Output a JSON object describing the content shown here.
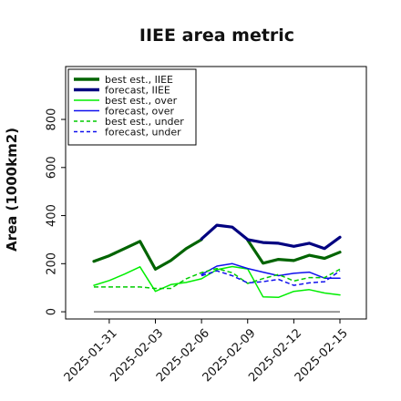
{
  "chart_data": {
    "type": "line",
    "title": "IIEE area metric",
    "xlabel": "",
    "ylabel": "Area (1000km2)",
    "ylim": [
      -30,
      1020
    ],
    "yticks": [
      0,
      200,
      400,
      600,
      800
    ],
    "xticks": [
      "2025-01-31",
      "2025-02-03",
      "2025-02-06",
      "2025-02-09",
      "2025-02-12",
      "2025-02-15"
    ],
    "highlighted_xtick": "2025-02-06",
    "highlight_color": "#228b22",
    "legend_position": "upper left",
    "x": [
      "2025-01-30",
      "2025-01-31",
      "2025-02-01",
      "2025-02-02",
      "2025-02-03",
      "2025-02-04",
      "2025-02-05",
      "2025-02-06",
      "2025-02-07",
      "2025-02-08",
      "2025-02-09",
      "2025-02-10",
      "2025-02-11",
      "2025-02-12",
      "2025-02-13",
      "2025-02-14",
      "2025-02-15"
    ],
    "zero_line": {
      "value": 0,
      "color": "#777777"
    },
    "series": [
      {
        "name": "best est., IIEE",
        "color": "#006400",
        "style": "solid",
        "width": 3.2,
        "values": [
          210,
          233,
          263,
          293,
          177,
          213,
          263,
          300,
          null,
          null,
          298,
          202,
          218,
          213,
          235,
          222,
          248
        ]
      },
      {
        "name": "forecast, IIEE",
        "color": "#000080",
        "style": "solid",
        "width": 3.2,
        "values": [
          null,
          null,
          null,
          null,
          null,
          null,
          null,
          303,
          360,
          352,
          300,
          288,
          285,
          272,
          285,
          263,
          310
        ]
      },
      {
        "name": "best est., over",
        "color": "#00ee00",
        "style": "solid",
        "width": 1.5,
        "values": [
          110,
          130,
          157,
          187,
          85,
          113,
          122,
          137,
          175,
          188,
          178,
          62,
          60,
          85,
          92,
          78,
          70
        ]
      },
      {
        "name": "forecast, over",
        "color": "#1010ee",
        "style": "solid",
        "width": 1.5,
        "values": [
          null,
          null,
          null,
          null,
          null,
          null,
          null,
          155,
          190,
          200,
          180,
          165,
          150,
          160,
          165,
          140,
          140
        ]
      },
      {
        "name": "best est., under",
        "color": "#00cc00",
        "style": "dashed",
        "width": 1.5,
        "values": [
          103,
          103,
          103,
          103,
          97,
          97,
          137,
          163,
          180,
          162,
          118,
          138,
          155,
          128,
          142,
          142,
          177
        ]
      },
      {
        "name": "forecast, under",
        "color": "#1010ee",
        "style": "dashed",
        "width": 1.5,
        "values": [
          null,
          null,
          null,
          null,
          null,
          null,
          null,
          150,
          170,
          150,
          120,
          125,
          135,
          110,
          120,
          125,
          170
        ]
      }
    ]
  }
}
